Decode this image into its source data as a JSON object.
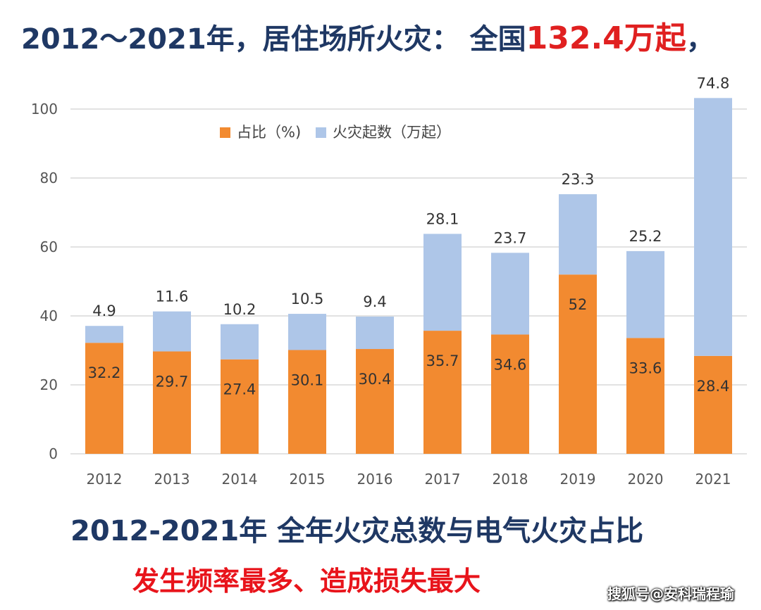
{
  "headline": {
    "prefix": "2012～2021年，居住场所火灾：  全国",
    "highlight": "132.4万起",
    "suffix": "，"
  },
  "subtitle": "2012-2021年 全年火灾总数与电气火灾占比",
  "subtitle2": "发生频率最多、造成损失最大",
  "watermark": "搜狐号@安科瑞程瑜",
  "colors": {
    "orange": "#f28a30",
    "blue": "#aec6e8",
    "navy": "#1f3864",
    "red": "#e8141b"
  },
  "chart_data": {
    "type": "bar",
    "stacked": true,
    "categories": [
      "2012",
      "2013",
      "2014",
      "2015",
      "2016",
      "2017",
      "2018",
      "2019",
      "2020",
      "2021"
    ],
    "series": [
      {
        "name": "占比（%)",
        "values": [
          32.2,
          29.7,
          27.4,
          30.1,
          30.4,
          35.7,
          34.6,
          52,
          33.6,
          28.4
        ],
        "color": "#f28a30"
      },
      {
        "name": "火灾起数（万起）",
        "values": [
          4.9,
          11.6,
          10.2,
          10.5,
          9.4,
          28.1,
          23.7,
          23.3,
          25.2,
          74.8
        ],
        "color": "#aec6e8"
      }
    ],
    "ylim": [
      0,
      100
    ],
    "yticks": [
      0,
      20,
      40,
      60,
      80,
      100
    ],
    "grid": true,
    "legend": "top-left"
  }
}
